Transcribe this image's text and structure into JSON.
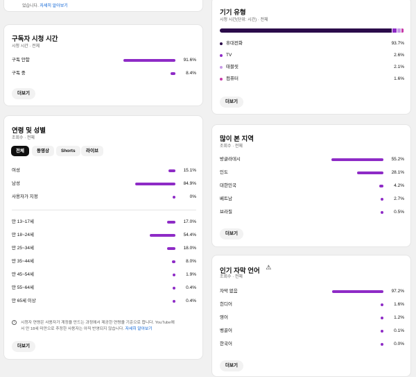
{
  "top_snippet": {
    "text": "었습니다.",
    "link": "자세히 알아보기"
  },
  "subscriber_watch": {
    "title": "구독자 시청 시간",
    "subtitle": "시청 시간 · 전체",
    "rows": [
      {
        "label": "구독 안함",
        "pct": "91.6%",
        "value": 91.6
      },
      {
        "label": "구독 중",
        "pct": "8.4%",
        "value": 8.4
      }
    ],
    "more_label": "더보기"
  },
  "age_gender": {
    "title": "연령 및 성별",
    "subtitle": "조회수 · 전체",
    "tabs": [
      "전체",
      "동영상",
      "Shorts",
      "라이브"
    ],
    "gender_rows": [
      {
        "label": "여성",
        "pct": "15.1%",
        "value": 15.1
      },
      {
        "label": "남성",
        "pct": "84.9%",
        "value": 84.9
      },
      {
        "label": "사용자가 지정",
        "pct": "0%",
        "value": 0
      }
    ],
    "age_rows": [
      {
        "label": "만 13~17세",
        "pct": "17.0%",
        "value": 17.0
      },
      {
        "label": "만 18~24세",
        "pct": "54.4%",
        "value": 54.4
      },
      {
        "label": "만 25~34세",
        "pct": "18.0%",
        "value": 18.0
      },
      {
        "label": "만 35~44세",
        "pct": "8.0%",
        "value": 8.0
      },
      {
        "label": "만 45~54세",
        "pct": "1.9%",
        "value": 1.9
      },
      {
        "label": "만 55~64세",
        "pct": "0.4%",
        "value": 0.4
      },
      {
        "label": "만 65세 이상",
        "pct": "0.4%",
        "value": 0.4
      }
    ],
    "note_line1": "시청자 연령은 사용자가 계정을 만드는 과정에서 제공한 연령을 기준으로 합니다. YouTube에",
    "note_line2": "서 만 18세 미만으로 추정한 사용자는 아직 반영되지 않습니다.",
    "note_link": "자세히 알아보기",
    "more_label": "더보기"
  },
  "device_type": {
    "title": "기기 유형",
    "subtitle": "시청 시간(단위: 시간) · 전체",
    "rows": [
      {
        "label": "휴대전화",
        "pct": "93.7%",
        "value": 93.7,
        "color": "#2b0b4a"
      },
      {
        "label": "TV",
        "pct": "2.6%",
        "value": 2.6,
        "color": "#8e2bc6"
      },
      {
        "label": "태블릿",
        "pct": "2.1%",
        "value": 2.1,
        "color": "#c79ae6"
      },
      {
        "label": "컴퓨터",
        "pct": "1.6%",
        "value": 1.6,
        "color": "#c73aa8"
      }
    ],
    "more_label": "더보기"
  },
  "top_regions": {
    "title": "많이 본 지역",
    "subtitle": "조회수 · 전체",
    "rows": [
      {
        "label": "방글라데시",
        "pct": "55.2%",
        "value": 55.2
      },
      {
        "label": "인도",
        "pct": "28.1%",
        "value": 28.1
      },
      {
        "label": "대한민국",
        "pct": "4.2%",
        "value": 4.2
      },
      {
        "label": "베트남",
        "pct": "2.7%",
        "value": 2.7
      },
      {
        "label": "브라질",
        "pct": "0.5%",
        "value": 0.5
      }
    ],
    "more_label": "더보기"
  },
  "subtitle_lang": {
    "title": "인기 자막 언어",
    "subtitle": "조회수 · 전체",
    "rows": [
      {
        "label": "자막 없음",
        "pct": "97.2%",
        "value": 97.2
      },
      {
        "label": "힌디어",
        "pct": "1.6%",
        "value": 1.6
      },
      {
        "label": "영어",
        "pct": "1.2%",
        "value": 1.2
      },
      {
        "label": "벵골어",
        "pct": "0.1%",
        "value": 0.1
      },
      {
        "label": "한국어",
        "pct": "0.0%",
        "value": 0.0
      }
    ],
    "more_label": "더보기"
  }
}
